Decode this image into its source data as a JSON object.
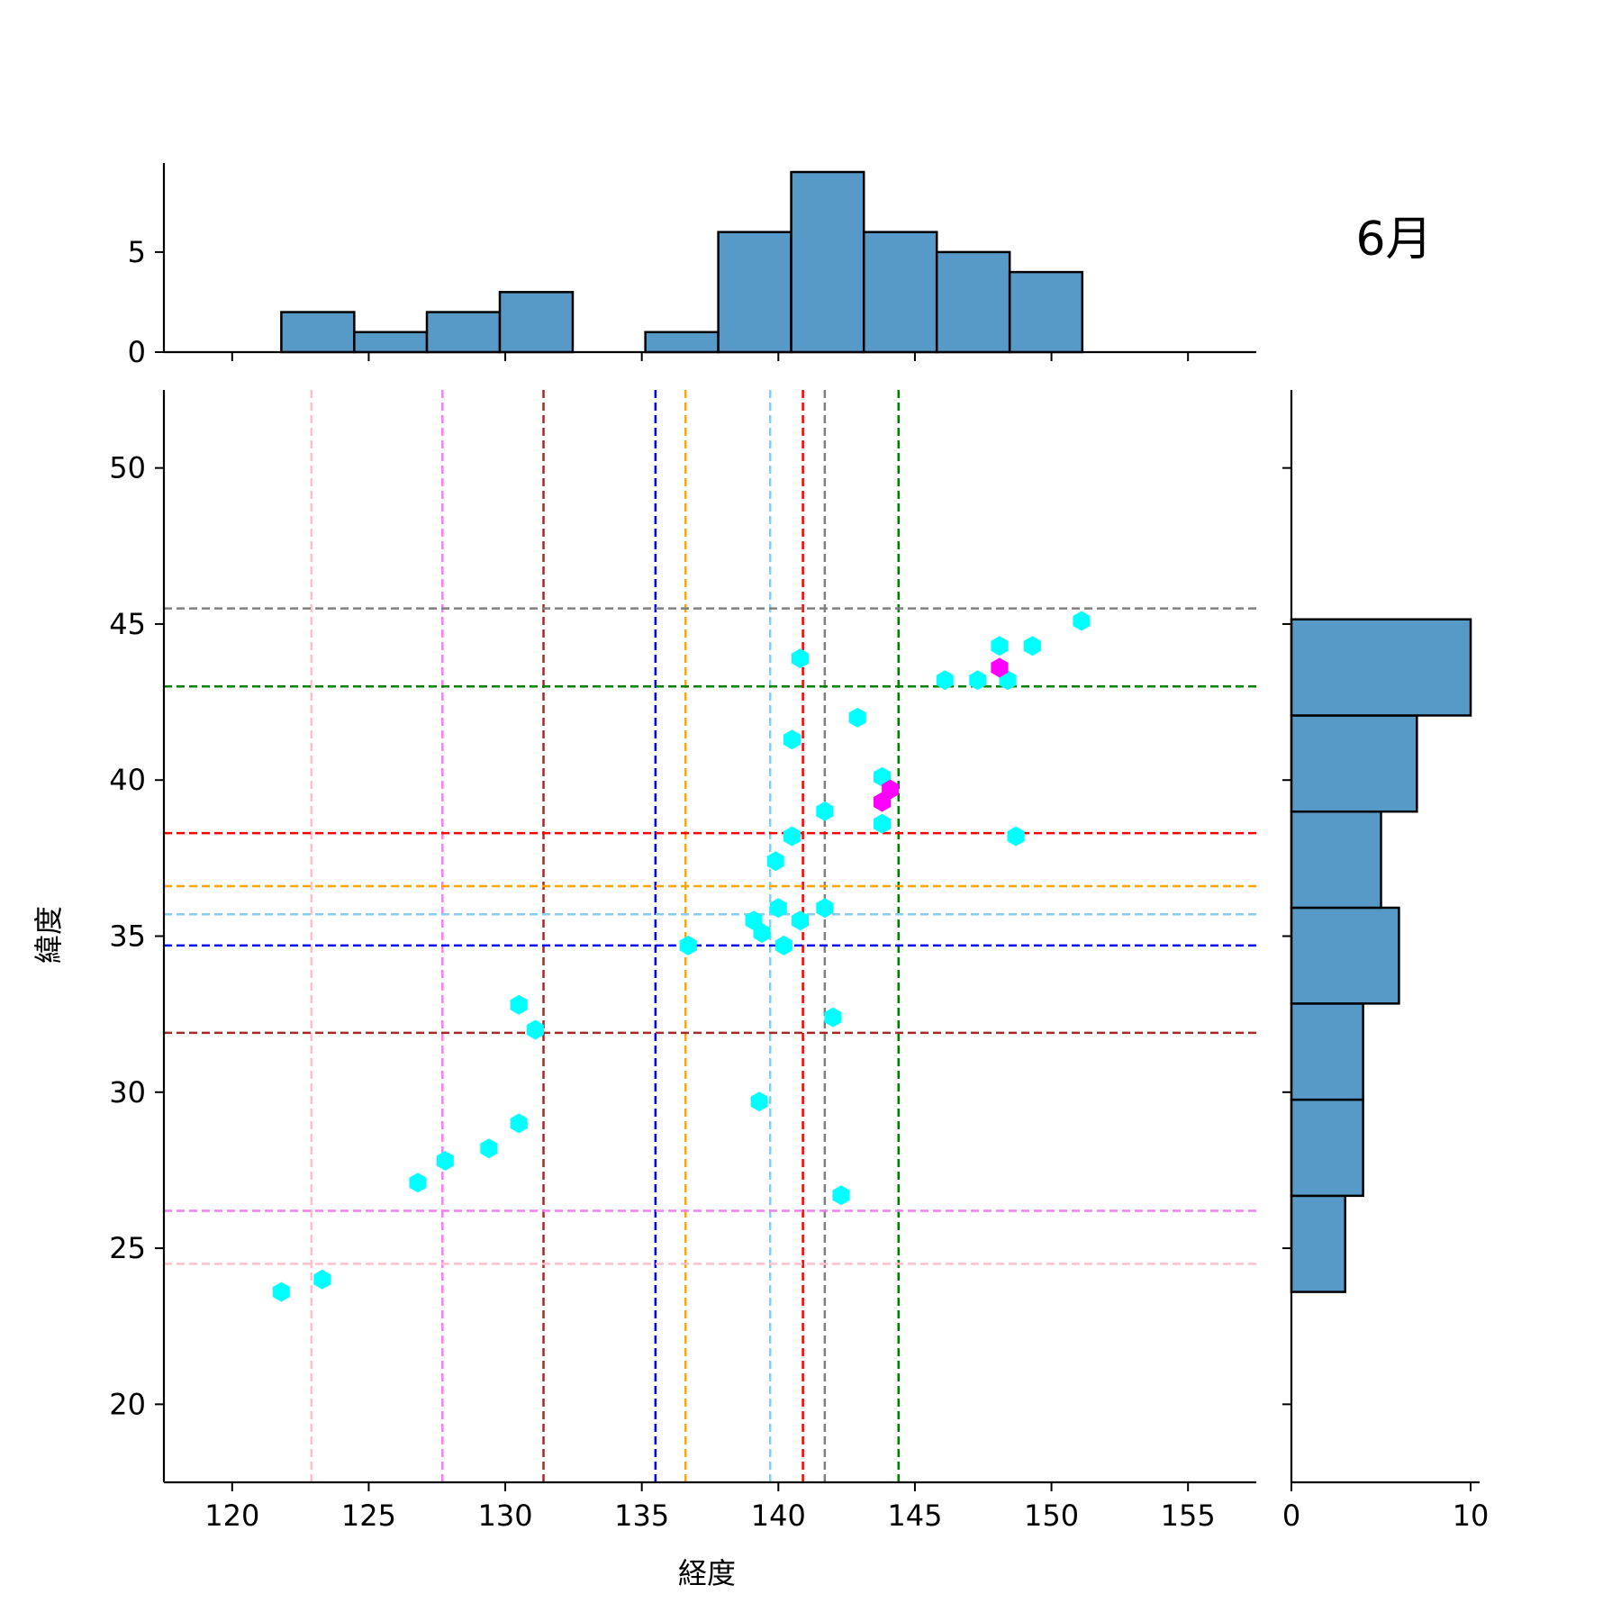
{
  "chart_data": {
    "type": "scatter",
    "subtype": "jointplot-hexbin",
    "title": "6月",
    "xlabel": "経度",
    "ylabel": "緯度",
    "xlim": [
      117.5,
      157.5
    ],
    "ylim": [
      17.5,
      52.5
    ],
    "xticks": [
      120,
      125,
      130,
      135,
      140,
      145,
      150,
      155
    ],
    "yticks": [
      20,
      25,
      30,
      35,
      40,
      45,
      50
    ],
    "grid": false,
    "points": [
      {
        "x": 121.8,
        "y": 23.6
      },
      {
        "x": 123.3,
        "y": 24.0
      },
      {
        "x": 126.8,
        "y": 27.1
      },
      {
        "x": 127.8,
        "y": 27.8
      },
      {
        "x": 129.4,
        "y": 28.2
      },
      {
        "x": 130.5,
        "y": 29.0
      },
      {
        "x": 130.5,
        "y": 32.8
      },
      {
        "x": 131.1,
        "y": 32.0
      },
      {
        "x": 136.7,
        "y": 34.7
      },
      {
        "x": 139.1,
        "y": 35.5
      },
      {
        "x": 139.4,
        "y": 35.1
      },
      {
        "x": 140.0,
        "y": 35.9
      },
      {
        "x": 140.2,
        "y": 34.7
      },
      {
        "x": 140.8,
        "y": 35.5
      },
      {
        "x": 141.7,
        "y": 35.9
      },
      {
        "x": 139.9,
        "y": 37.4
      },
      {
        "x": 140.5,
        "y": 38.2
      },
      {
        "x": 141.7,
        "y": 39.0
      },
      {
        "x": 143.8,
        "y": 38.6
      },
      {
        "x": 143.8,
        "y": 40.1
      },
      {
        "x": 140.5,
        "y": 41.3
      },
      {
        "x": 142.9,
        "y": 42.0
      },
      {
        "x": 140.8,
        "y": 43.9
      },
      {
        "x": 146.1,
        "y": 43.2
      },
      {
        "x": 147.3,
        "y": 43.2
      },
      {
        "x": 148.4,
        "y": 43.2
      },
      {
        "x": 148.1,
        "y": 44.3
      },
      {
        "x": 149.3,
        "y": 44.3
      },
      {
        "x": 151.1,
        "y": 45.1
      },
      {
        "x": 148.7,
        "y": 38.2
      },
      {
        "x": 142.0,
        "y": 32.4
      },
      {
        "x": 139.3,
        "y": 29.7
      },
      {
        "x": 142.3,
        "y": 26.7
      }
    ],
    "dense_points": [
      {
        "x": 148.1,
        "y": 43.6
      },
      {
        "x": 143.8,
        "y": 39.3
      },
      {
        "x": 144.1,
        "y": 39.7
      }
    ],
    "hex_color": "#00ffff",
    "hex_dense_color": "#ff00ff",
    "vlines": [
      {
        "x": 122.9,
        "color": "#ffc0cb"
      },
      {
        "x": 127.7,
        "color": "#ee82ee"
      },
      {
        "x": 131.4,
        "color": "#a52a2a"
      },
      {
        "x": 135.5,
        "color": "#0000ff"
      },
      {
        "x": 136.6,
        "color": "#ffa500"
      },
      {
        "x": 139.7,
        "color": "#87ceeb"
      },
      {
        "x": 140.9,
        "color": "#ff0000"
      },
      {
        "x": 141.7,
        "color": "#808080"
      },
      {
        "x": 144.4,
        "color": "#008000"
      }
    ],
    "hlines": [
      {
        "y": 45.5,
        "color": "#808080"
      },
      {
        "y": 43.0,
        "color": "#008000"
      },
      {
        "y": 38.3,
        "color": "#ff0000"
      },
      {
        "y": 36.6,
        "color": "#ffa500"
      },
      {
        "y": 35.7,
        "color": "#87ceeb"
      },
      {
        "y": 34.7,
        "color": "#0000ff"
      },
      {
        "y": 31.9,
        "color": "#a52a2a"
      },
      {
        "y": 26.2,
        "color": "#ee82ee"
      },
      {
        "y": 24.5,
        "color": "#ffc0cb"
      }
    ],
    "marginal_x": {
      "bin_edges": [
        121.8,
        124.47,
        127.13,
        129.8,
        132.47,
        135.13,
        137.8,
        140.47,
        143.13,
        145.8,
        148.47,
        151.13
      ],
      "counts": [
        2,
        1,
        2,
        3,
        0,
        1,
        6,
        9,
        6,
        5,
        4
      ],
      "ylim": [
        0,
        9.45
      ],
      "yticks": [
        0,
        5
      ]
    },
    "marginal_y": {
      "bin_edges": [
        23.6,
        26.68,
        29.76,
        32.84,
        35.91,
        38.99,
        42.07,
        45.15
      ],
      "counts": [
        3,
        4,
        4,
        6,
        5,
        7,
        10
      ],
      "xlim": [
        0,
        10.5
      ],
      "xticks": [
        0,
        10
      ]
    },
    "bar_color": "#5799c7"
  }
}
